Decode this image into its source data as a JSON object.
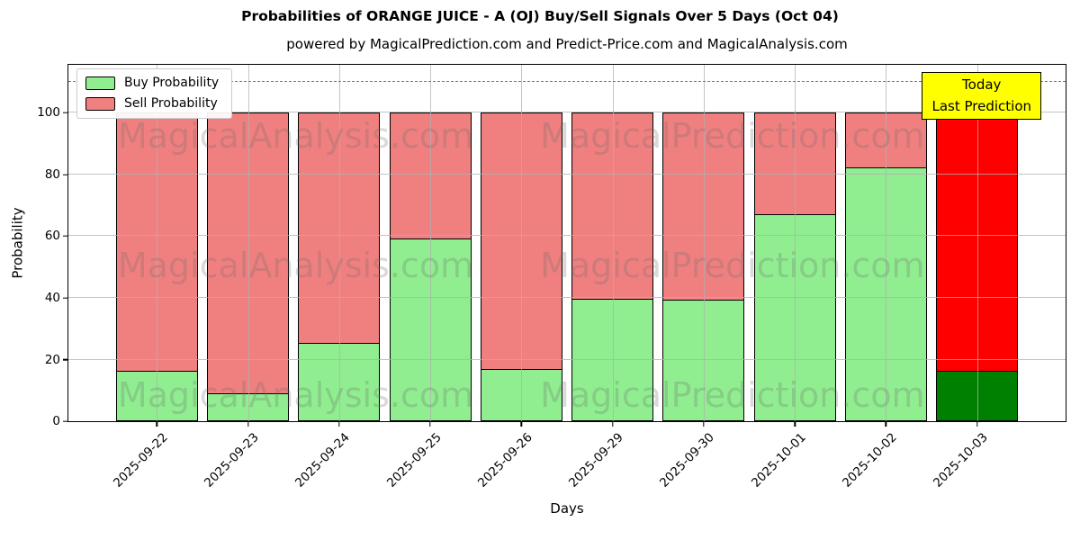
{
  "title": "Probabilities of ORANGE JUICE - A (OJ) Buy/Sell Signals Over 5 Days (Oct 04)",
  "subtitle": "powered by MagicalPrediction.com and Predict-Price.com and MagicalAnalysis.com",
  "axes": {
    "ylabel": "Probability",
    "xlabel": "Days"
  },
  "legend": {
    "items": [
      {
        "label": "Buy Probability",
        "color": "#90EE90"
      },
      {
        "label": "Sell Probability",
        "color": "#F08080"
      }
    ]
  },
  "annotation": {
    "line1": "Today",
    "line2": "Last Prediction",
    "bg": "#FFFF00",
    "border_color": "#000000"
  },
  "watermarks": [
    "MagicalAnalysis.com",
    "MagicalPrediction.com"
  ],
  "chart_data": {
    "type": "bar",
    "stacked": true,
    "categories": [
      "2025-09-22",
      "2025-09-23",
      "2025-09-24",
      "2025-09-25",
      "2025-09-26",
      "2025-09-29",
      "2025-09-30",
      "2025-10-01",
      "2025-10-02",
      "2025-10-03"
    ],
    "series": [
      {
        "name": "Buy Probability",
        "values": [
          16,
          8.5,
          25,
          59,
          16.5,
          39.5,
          39,
          67,
          82.5,
          16
        ]
      },
      {
        "name": "Sell Probability",
        "values": [
          84,
          91.5,
          75,
          41,
          83.5,
          60.5,
          61,
          33,
          17.5,
          84
        ]
      }
    ],
    "title": "Probabilities of ORANGE JUICE - A (OJ) Buy/Sell Signals Over 5 Days (Oct 04)",
    "xlabel": "Days",
    "ylabel": "Probability",
    "ylim": [
      0,
      115.6
    ],
    "yticks": [
      0,
      20,
      40,
      60,
      80,
      100
    ],
    "grid": true,
    "legend_position": "upper left",
    "dashed_line_y": 110,
    "today_index": 9,
    "today_note": "Today / Last Prediction",
    "colors": {
      "buy": "#90EE90",
      "sell": "#F08080",
      "today_buy": "#008000",
      "today_sell": "#FF0000",
      "edge": "#000000",
      "grid": "#b0b0b0",
      "dashed": "#7a7a7a"
    }
  }
}
